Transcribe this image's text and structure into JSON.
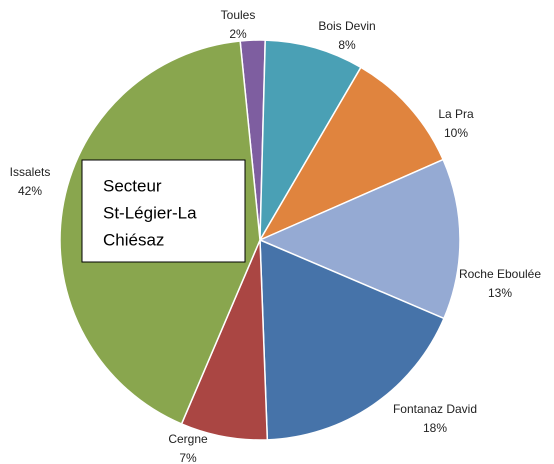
{
  "chart_data": {
    "type": "pie",
    "categories": [
      "Toules",
      "Bois Devin",
      "La Pra",
      "Roche Eboulée",
      "Fontanaz David",
      "Cergne",
      "Issalets"
    ],
    "values": [
      2,
      8,
      10,
      13,
      18,
      7,
      42
    ],
    "value_labels": [
      "2%",
      "8%",
      "10%",
      "13%",
      "18%",
      "7%",
      "42%"
    ],
    "colors": [
      "#7e5ea0",
      "#4aa0b5",
      "#e0843e",
      "#95aad3",
      "#4673a9",
      "#aa4643",
      "#89a64e"
    ],
    "annotation": [
      "Secteur",
      "St-Légier-La",
      "Chiésaz"
    ]
  }
}
